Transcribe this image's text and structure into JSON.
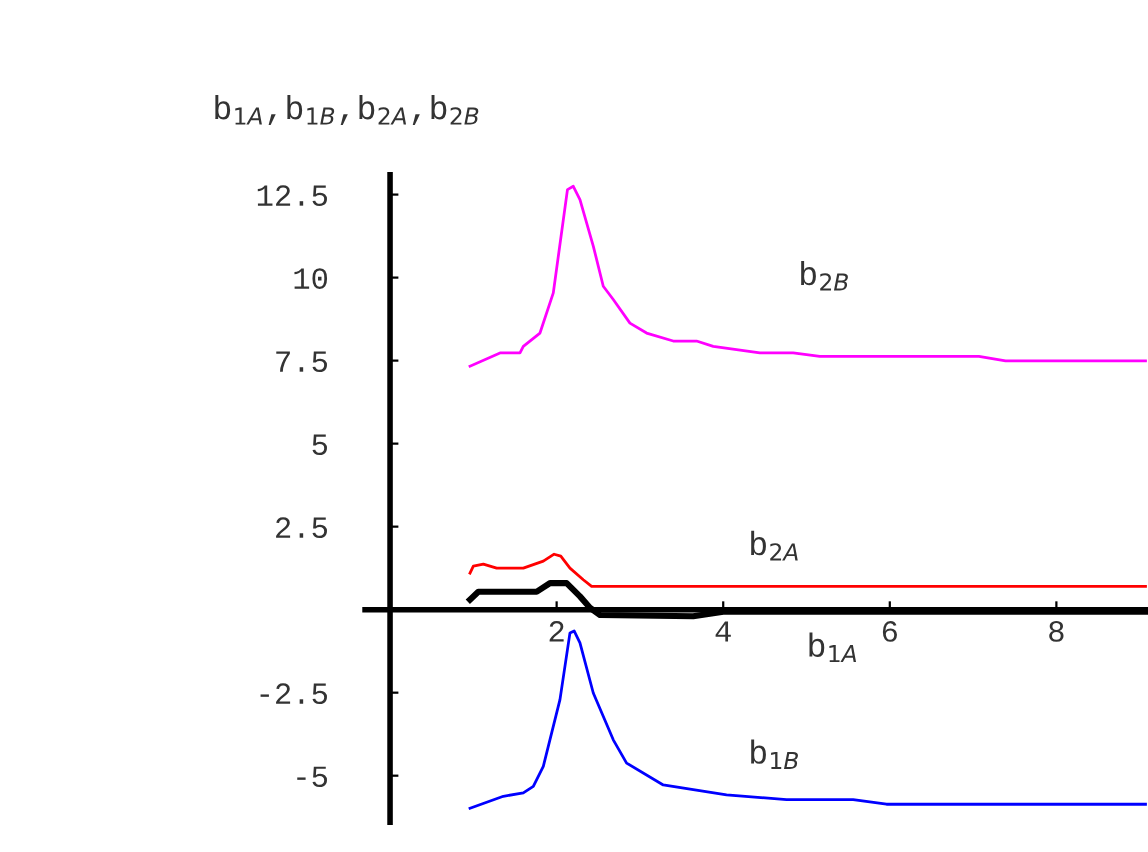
{
  "chart_data": {
    "type": "line",
    "ylabel": "b$_{1A}$,b$_{1B}$,b$_{2A}$,b$_{2B}$",
    "xlim": [
      -0.3,
      9.1
    ],
    "ylim": [
      -6.4,
      13.1
    ],
    "xticks": [
      2,
      4,
      6,
      8
    ],
    "yticks": [
      -5,
      -2.5,
      2.5,
      5,
      7.5,
      10,
      12.5
    ],
    "grid": false,
    "legend": false,
    "marker": "none",
    "line_style": "solid",
    "series": [
      {
        "name": "b$_{1A}$",
        "color": "#000000",
        "x": [
          0.96,
          1.06,
          1.76,
          1.92,
          2.12,
          2.28,
          2.4,
          2.52,
          3.64,
          4.0,
          9.07
        ],
        "values": [
          0.3,
          0.54,
          0.54,
          0.8,
          0.8,
          0.4,
          0.06,
          -0.16,
          -0.2,
          -0.06,
          -0.06
        ]
      },
      {
        "name": "b$_{1B}$",
        "color": "#0000ff",
        "x": [
          0.96,
          1.36,
          1.6,
          1.72,
          1.84,
          2.04,
          2.16,
          2.21,
          2.28,
          2.44,
          2.68,
          2.84,
          3.28,
          3.64,
          4.04,
          4.76,
          5.56,
          5.96,
          9.07
        ],
        "values": [
          -5.98,
          -5.62,
          -5.52,
          -5.32,
          -4.72,
          -2.71,
          -0.7,
          -0.64,
          -1.0,
          -2.51,
          -3.92,
          -4.62,
          -5.28,
          -5.42,
          -5.58,
          -5.72,
          -5.72,
          -5.86,
          -5.86
        ]
      },
      {
        "name": "b$_{2A}$",
        "color": "#ff0000",
        "x": [
          0.96,
          1.0,
          1.12,
          1.28,
          1.6,
          1.84,
          1.97,
          2.05,
          2.16,
          2.32,
          2.42,
          9.07
        ],
        "values": [
          1.1,
          1.31,
          1.37,
          1.25,
          1.25,
          1.46,
          1.67,
          1.61,
          1.25,
          0.9,
          0.7,
          0.7
        ]
      },
      {
        "name": "b$_{2B}$",
        "color": "#ff00ff",
        "x": [
          0.96,
          1.32,
          1.56,
          1.6,
          1.8,
          1.96,
          2.13,
          2.2,
          2.28,
          2.44,
          2.56,
          2.68,
          2.88,
          3.08,
          3.4,
          3.68,
          3.88,
          4.44,
          4.84,
          5.16,
          7.07,
          7.39,
          9.07
        ],
        "values": [
          7.33,
          7.73,
          7.73,
          7.93,
          8.33,
          9.54,
          12.65,
          12.75,
          12.35,
          10.95,
          9.74,
          9.34,
          8.63,
          8.33,
          8.09,
          8.09,
          7.93,
          7.73,
          7.73,
          7.63,
          7.63,
          7.49,
          7.49
        ]
      }
    ]
  }
}
